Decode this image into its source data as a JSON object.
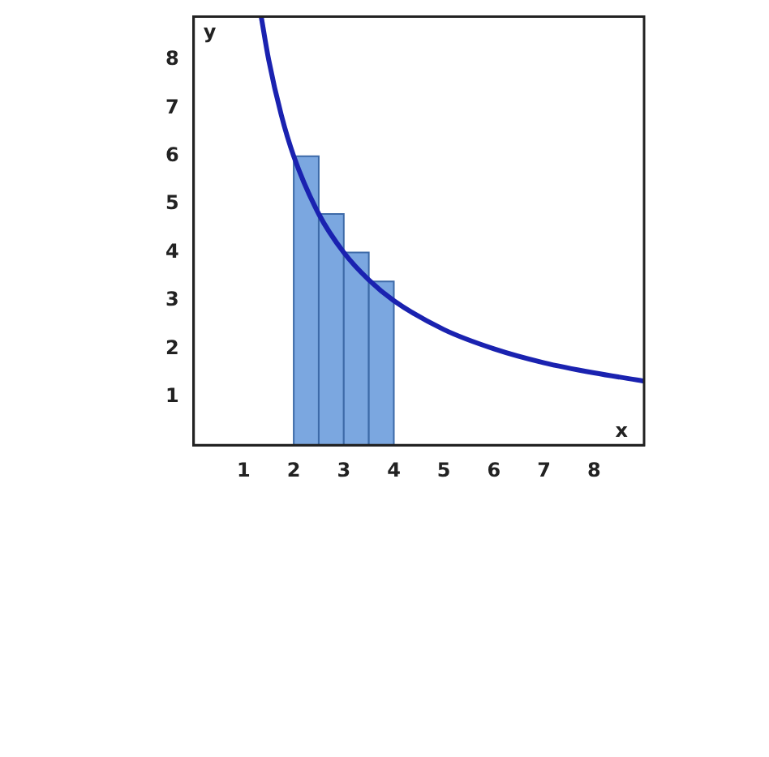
{
  "chart_data": {
    "type": "line",
    "xlabel": "x",
    "ylabel": "y",
    "xlim": [
      0,
      9
    ],
    "ylim": [
      0,
      8.9
    ],
    "xticks": [
      1,
      2,
      3,
      4,
      5,
      6,
      7,
      8
    ],
    "yticks": [
      1,
      2,
      3,
      4,
      5,
      6,
      7,
      8
    ],
    "grid": false,
    "legend": false,
    "marker": "none",
    "line_style": "solid",
    "series": [
      {
        "type": "histogram",
        "color": "#7ba7e0",
        "bins": [
          2,
          2.5,
          3,
          3.5,
          4
        ],
        "values": [
          6,
          4.8,
          4,
          3.4
        ]
      },
      {
        "type": "line",
        "color": "#1a22b0",
        "x": [
          1.35,
          1.5,
          1.75,
          2,
          2.5,
          3,
          3.5,
          4,
          5,
          6,
          7,
          8,
          9
        ],
        "values": [
          8.9,
          8,
          6.86,
          6,
          4.8,
          4,
          3.43,
          3,
          2.4,
          2,
          1.71,
          1.5,
          1.33
        ]
      }
    ]
  }
}
